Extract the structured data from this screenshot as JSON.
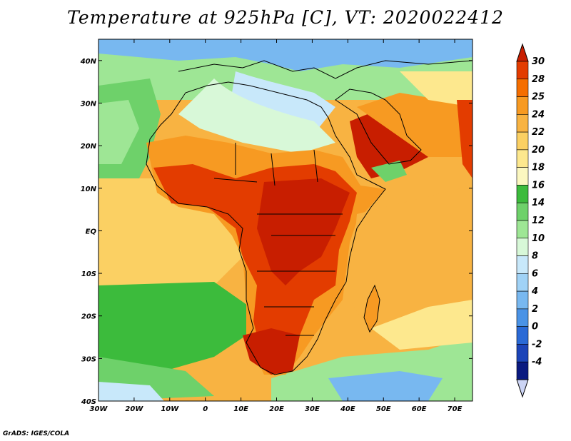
{
  "title": "Temperature at 925hPa [C], VT: 2020022412",
  "credit": "GrADS: IGES/COLA",
  "map": {
    "lon_range": [
      -30,
      75
    ],
    "lat_range": [
      -40,
      45
    ],
    "lon_ticks": [
      {
        "value": -30,
        "label": "30W"
      },
      {
        "value": -20,
        "label": "20W"
      },
      {
        "value": -10,
        "label": "10W"
      },
      {
        "value": 0,
        "label": "0"
      },
      {
        "value": 10,
        "label": "10E"
      },
      {
        "value": 20,
        "label": "20E"
      },
      {
        "value": 30,
        "label": "30E"
      },
      {
        "value": 40,
        "label": "40E"
      },
      {
        "value": 50,
        "label": "50E"
      },
      {
        "value": 60,
        "label": "60E"
      },
      {
        "value": 70,
        "label": "70E"
      }
    ],
    "lat_ticks": [
      {
        "value": 40,
        "label": "40N"
      },
      {
        "value": 30,
        "label": "30N"
      },
      {
        "value": 20,
        "label": "20N"
      },
      {
        "value": 10,
        "label": "10N"
      },
      {
        "value": 0,
        "label": "EQ"
      },
      {
        "value": -10,
        "label": "10S"
      },
      {
        "value": -20,
        "label": "20S"
      },
      {
        "value": -30,
        "label": "30S"
      },
      {
        "value": -40,
        "label": "40S"
      }
    ],
    "projection": "plate carree"
  },
  "colorbar": {
    "labels": [
      "30",
      "28",
      "25",
      "24",
      "22",
      "20",
      "18",
      "16",
      "14",
      "12",
      "10",
      "8",
      "6",
      "4",
      "2",
      "0",
      "-2",
      "-4"
    ],
    "colors": [
      "#c81e00",
      "#e33c00",
      "#f56e00",
      "#f79a22",
      "#f8b342",
      "#fbd063",
      "#fde88e",
      "#fbf7c0",
      "#3cbb3c",
      "#6ed16a",
      "#9ee695",
      "#d8f8d8",
      "#c8e8fa",
      "#a0d2f6",
      "#78b8f0",
      "#4a93e6",
      "#2a6ad6",
      "#1c44b8",
      "#0a1a80",
      "#ccd4f4"
    ]
  },
  "colors": {
    "hot": "#c81e00",
    "warm": "#f79a22",
    "mild": "#fde88e",
    "cool_green": "#3cbb3c",
    "cold": "#78b8f0",
    "ocean_warm": "#f8b342"
  }
}
